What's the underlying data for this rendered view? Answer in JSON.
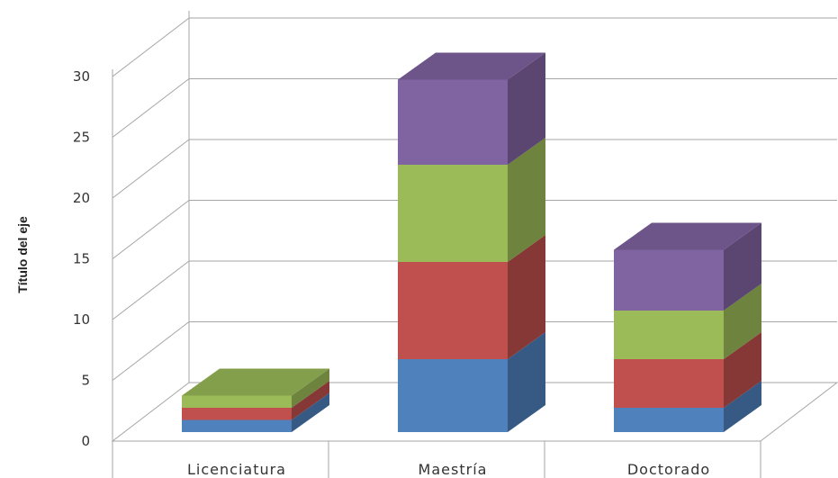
{
  "chart_data": {
    "type": "bar",
    "stacked": true,
    "three_d": true,
    "categories": [
      "Licenciatura",
      "Maestría",
      "Doctorado"
    ],
    "series": [
      {
        "values": [
          1,
          6,
          2
        ],
        "color": "#4f81bd"
      },
      {
        "values": [
          1,
          8,
          4
        ],
        "color": "#c0504d"
      },
      {
        "values": [
          1,
          8,
          4
        ],
        "color": "#9bbb59"
      },
      {
        "values": [
          0,
          7,
          5
        ],
        "color": "#8064a2"
      }
    ],
    "ylabel": "Título del eje",
    "ylim": [
      0,
      30
    ],
    "yticks": [
      "0",
      "5",
      "10",
      "15",
      "20",
      "25",
      "30"
    ],
    "grid": true,
    "legend": "none"
  }
}
